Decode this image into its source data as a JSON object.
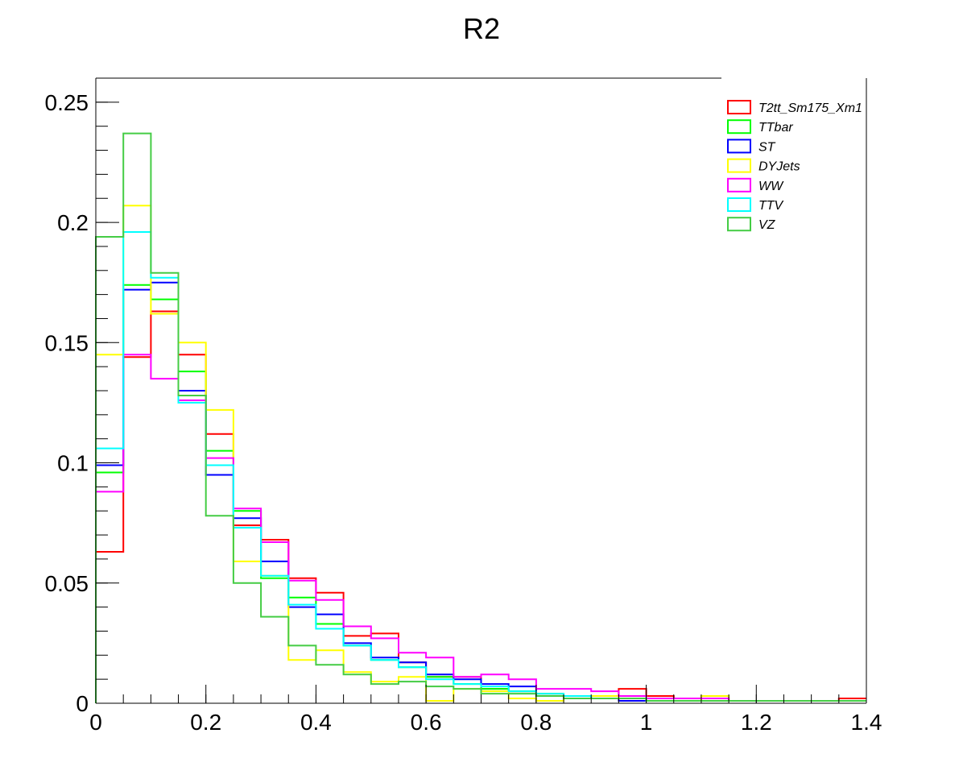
{
  "chart_data": {
    "type": "histogram",
    "title": "R2",
    "xlabel": "",
    "ylabel": "",
    "xlim": [
      0,
      1.4
    ],
    "ylim": [
      0,
      0.26
    ],
    "bin_edges": [
      0,
      0.05,
      0.1,
      0.15,
      0.2,
      0.25,
      0.3,
      0.35,
      0.4,
      0.45,
      0.5,
      0.55,
      0.6,
      0.65,
      0.7,
      0.75,
      0.8,
      0.85,
      0.9,
      0.95,
      1.0,
      1.05,
      1.1,
      1.15,
      1.2,
      1.25,
      1.3,
      1.35,
      1.4
    ],
    "x_ticks": [
      {
        "value": 0,
        "label": "0"
      },
      {
        "value": 0.2,
        "label": "0.2"
      },
      {
        "value": 0.4,
        "label": "0.4"
      },
      {
        "value": 0.6,
        "label": "0.6"
      },
      {
        "value": 0.8,
        "label": "0.8"
      },
      {
        "value": 1.0,
        "label": "1"
      },
      {
        "value": 1.2,
        "label": "1.2"
      },
      {
        "value": 1.4,
        "label": "1.4"
      }
    ],
    "y_ticks": [
      {
        "value": 0,
        "label": "0"
      },
      {
        "value": 0.05,
        "label": "0.05"
      },
      {
        "value": 0.1,
        "label": "0.1"
      },
      {
        "value": 0.15,
        "label": "0.15"
      },
      {
        "value": 0.2,
        "label": "0.2"
      },
      {
        "value": 0.25,
        "label": "0.25"
      }
    ],
    "legend_position": "top-right",
    "grid": false,
    "series": [
      {
        "name": "T2tt_Sm175_Xm1",
        "color": "#ff0000",
        "values": [
          0.063,
          0.144,
          0.163,
          0.145,
          0.112,
          0.074,
          0.068,
          0.052,
          0.046,
          0.028,
          0.029,
          0.017,
          0.011,
          0.011,
          0.006,
          0.005,
          0.004,
          0.003,
          0.003,
          0.006,
          0.003,
          0.002,
          0.003,
          0.001,
          0.001,
          0.001,
          0.001,
          0.002
        ]
      },
      {
        "name": "TTbar",
        "color": "#00ff00",
        "values": [
          0.096,
          0.174,
          0.168,
          0.138,
          0.105,
          0.08,
          0.052,
          0.044,
          0.033,
          0.024,
          0.018,
          0.015,
          0.011,
          0.008,
          0.006,
          0.005,
          0.004,
          0.003,
          0.002,
          0.002,
          0.001,
          0.001,
          0.001,
          0.001,
          0.001,
          0.001,
          0.001,
          0.001
        ]
      },
      {
        "name": "ST",
        "color": "#0000ff",
        "values": [
          0.099,
          0.172,
          0.175,
          0.13,
          0.095,
          0.077,
          0.059,
          0.04,
          0.037,
          0.025,
          0.019,
          0.017,
          0.012,
          0.01,
          0.008,
          0.007,
          0.003,
          0.002,
          0.002,
          0.001,
          0.001,
          0.001,
          0.001,
          0.001,
          0.001,
          0.001,
          0.001,
          0.001
        ]
      },
      {
        "name": "DYJets",
        "color": "#ffff00",
        "values": [
          0.145,
          0.207,
          0.162,
          0.15,
          0.122,
          0.059,
          0.053,
          0.018,
          0.022,
          0.013,
          0.009,
          0.011,
          0.001,
          0.006,
          0.005,
          0.002,
          0.001,
          0.002,
          0.003,
          0.002,
          0.001,
          0.001,
          0.003,
          0.001,
          0.001,
          0.001,
          0.001,
          0.001
        ]
      },
      {
        "name": "WW",
        "color": "#ff00ff",
        "values": [
          0.088,
          0.145,
          0.135,
          0.126,
          0.102,
          0.081,
          0.067,
          0.051,
          0.043,
          0.032,
          0.027,
          0.021,
          0.019,
          0.011,
          0.012,
          0.01,
          0.006,
          0.006,
          0.005,
          0.003,
          0.002,
          0.002,
          0.002,
          0.001,
          0.001,
          0.001,
          0.001,
          0.001
        ]
      },
      {
        "name": "TTV",
        "color": "#00ffff",
        "values": [
          0.106,
          0.196,
          0.177,
          0.125,
          0.099,
          0.073,
          0.053,
          0.041,
          0.031,
          0.024,
          0.018,
          0.015,
          0.01,
          0.008,
          0.007,
          0.005,
          0.004,
          0.003,
          0.002,
          0.002,
          0.001,
          0.001,
          0.001,
          0.001,
          0.001,
          0.001,
          0.001,
          0.001
        ]
      },
      {
        "name": "VZ",
        "color": "#44cc44",
        "values": [
          0.194,
          0.237,
          0.179,
          0.128,
          0.078,
          0.05,
          0.036,
          0.024,
          0.016,
          0.012,
          0.008,
          0.009,
          0.007,
          0.006,
          0.004,
          0.004,
          0.003,
          0.002,
          0.002,
          0.002,
          0.001,
          0.001,
          0.001,
          0.001,
          0.001,
          0.001,
          0.001,
          0.001
        ]
      }
    ]
  }
}
